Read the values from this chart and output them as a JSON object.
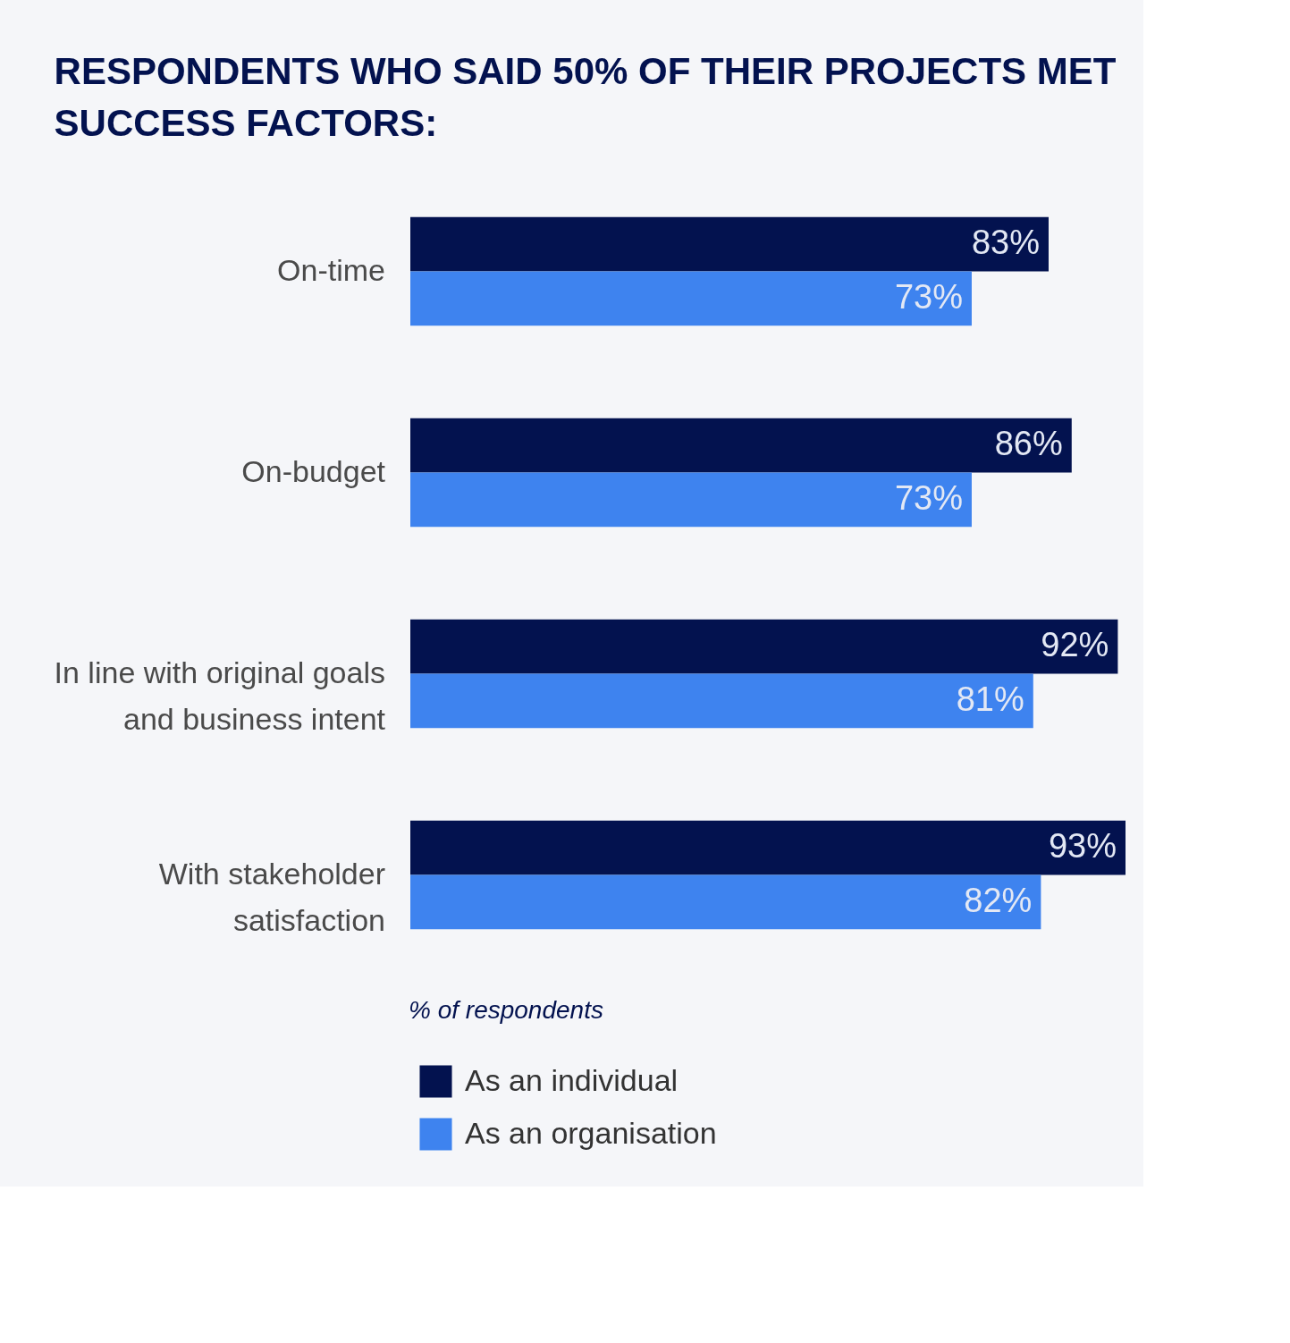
{
  "chart_data": {
    "type": "bar",
    "orientation": "horizontal",
    "title": "RESPONDENTS WHO SAID 50% OF THEIR PROJECTS MET SUCCESS FACTORS:",
    "categories": [
      "On-time",
      "On-budget",
      "In line with original goals and business intent",
      "With stakeholder satisfaction"
    ],
    "series": [
      {
        "name": "As an individual",
        "color": "#03124f",
        "values": [
          83,
          86,
          92,
          93
        ],
        "value_labels": [
          "83%",
          "86%",
          "92%",
          "93%"
        ]
      },
      {
        "name": "As an organisation",
        "color": "#3e83ef",
        "values": [
          73,
          73,
          81,
          82
        ],
        "value_labels": [
          "73%",
          "73%",
          "81%",
          "82%"
        ]
      }
    ],
    "legend": "bottom",
    "annotations": [
      "% of respondents"
    ]
  }
}
